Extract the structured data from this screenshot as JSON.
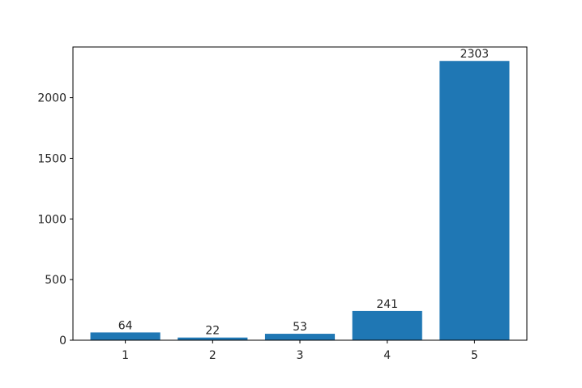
{
  "chart_data": {
    "type": "bar",
    "categories": [
      "1",
      "2",
      "3",
      "4",
      "5"
    ],
    "values": [
      64,
      22,
      53,
      241,
      2303
    ],
    "color": "#1f77b4",
    "ylim": [
      0,
      2418.15
    ],
    "yticks": [
      0,
      500,
      1000,
      1500,
      2000
    ]
  }
}
